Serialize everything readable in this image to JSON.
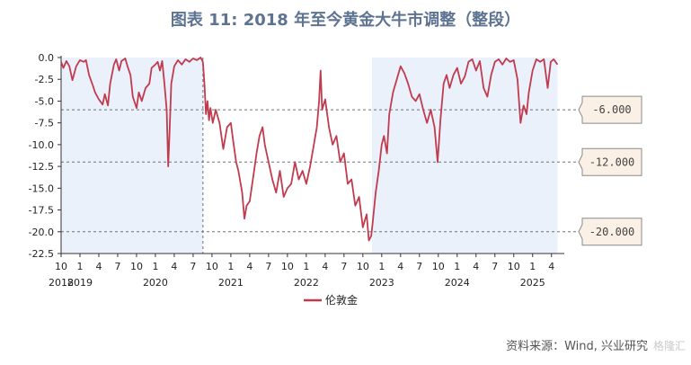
{
  "title": "图表 11: 2018 年至今黄金大牛市调整（整段）",
  "source": "资料来源：Wind, 兴业研究",
  "watermark": "格隆汇",
  "chart_data": {
    "type": "line",
    "ylim": [
      -22.5,
      0.0
    ],
    "yticks": [
      0.0,
      -2.5,
      -5.0,
      -7.5,
      -10.0,
      -12.5,
      -15.0,
      -17.5,
      -20.0,
      -22.5
    ],
    "ytick_labels": [
      "0.0",
      "-2.5",
      "-5.0",
      "-7.5",
      "-10.0",
      "-12.5",
      "-15.0",
      "-17.5",
      "-20.0",
      "-22.5"
    ],
    "xlim": [
      "2018-10",
      "2025-05"
    ],
    "xticks": [
      {
        "month": "10",
        "year": "2018",
        "t": 2018.75
      },
      {
        "month": "1",
        "year": "2019",
        "t": 2019.0
      },
      {
        "month": "4",
        "year": "",
        "t": 2019.25
      },
      {
        "month": "7",
        "year": "",
        "t": 2019.5
      },
      {
        "month": "10",
        "year": "",
        "t": 2019.75
      },
      {
        "month": "1",
        "year": "2020",
        "t": 2020.0
      },
      {
        "month": "4",
        "year": "",
        "t": 2020.25
      },
      {
        "month": "7",
        "year": "",
        "t": 2020.5
      },
      {
        "month": "10",
        "year": "",
        "t": 2020.75
      },
      {
        "month": "1",
        "year": "2021",
        "t": 2021.0
      },
      {
        "month": "4",
        "year": "",
        "t": 2021.25
      },
      {
        "month": "7",
        "year": "",
        "t": 2021.5
      },
      {
        "month": "10",
        "year": "",
        "t": 2021.75
      },
      {
        "month": "1",
        "year": "2022",
        "t": 2022.0
      },
      {
        "month": "4",
        "year": "",
        "t": 2022.25
      },
      {
        "month": "7",
        "year": "",
        "t": 2022.5
      },
      {
        "month": "10",
        "year": "",
        "t": 2022.75
      },
      {
        "month": "1",
        "year": "2023",
        "t": 2023.0
      },
      {
        "month": "4",
        "year": "",
        "t": 2023.25
      },
      {
        "month": "7",
        "year": "",
        "t": 2023.5
      },
      {
        "month": "10",
        "year": "",
        "t": 2023.75
      },
      {
        "month": "1",
        "year": "2024",
        "t": 2024.0
      },
      {
        "month": "4",
        "year": "",
        "t": 2024.25
      },
      {
        "month": "7",
        "year": "",
        "t": 2024.5
      },
      {
        "month": "10",
        "year": "",
        "t": 2024.75
      },
      {
        "month": "1",
        "year": "2025",
        "t": 2025.0
      },
      {
        "month": "4",
        "year": "",
        "t": 2025.25
      }
    ],
    "shaded_ranges": [
      {
        "from": 2018.75,
        "to": 2020.63
      },
      {
        "from": 2022.87,
        "to": 2025.33
      }
    ],
    "vline": 2020.63,
    "hlines": [
      {
        "value": -6.0,
        "label": "-6.000"
      },
      {
        "value": -12.0,
        "label": "-12.000"
      },
      {
        "value": -20.0,
        "label": "-20.000"
      }
    ],
    "series": [
      {
        "name": "伦敦金",
        "color": "#c13b4e",
        "points": [
          [
            2018.75,
            -0.5
          ],
          [
            2018.78,
            -1.2
          ],
          [
            2018.82,
            -0.4
          ],
          [
            2018.86,
            -1.0
          ],
          [
            2018.9,
            -2.6
          ],
          [
            2018.95,
            -1.0
          ],
          [
            2019.0,
            -0.3
          ],
          [
            2019.05,
            -0.5
          ],
          [
            2019.08,
            -0.3
          ],
          [
            2019.12,
            -2.0
          ],
          [
            2019.17,
            -3.2
          ],
          [
            2019.2,
            -4.0
          ],
          [
            2019.25,
            -4.8
          ],
          [
            2019.3,
            -5.4
          ],
          [
            2019.33,
            -4.2
          ],
          [
            2019.37,
            -5.5
          ],
          [
            2019.4,
            -3.0
          ],
          [
            2019.45,
            -0.8
          ],
          [
            2019.48,
            -0.2
          ],
          [
            2019.52,
            -1.5
          ],
          [
            2019.55,
            -0.4
          ],
          [
            2019.6,
            -0.1
          ],
          [
            2019.63,
            -1.0
          ],
          [
            2019.67,
            -2.0
          ],
          [
            2019.7,
            -4.5
          ],
          [
            2019.75,
            -5.8
          ],
          [
            2019.78,
            -4.0
          ],
          [
            2019.82,
            -5.0
          ],
          [
            2019.87,
            -3.5
          ],
          [
            2019.92,
            -3.0
          ],
          [
            2019.95,
            -1.2
          ],
          [
            2020.0,
            -0.8
          ],
          [
            2020.03,
            -0.5
          ],
          [
            2020.06,
            -1.5
          ],
          [
            2020.09,
            -0.4
          ],
          [
            2020.12,
            -3.0
          ],
          [
            2020.15,
            -6.0
          ],
          [
            2020.17,
            -12.5
          ],
          [
            2020.19,
            -8.0
          ],
          [
            2020.21,
            -3.0
          ],
          [
            2020.25,
            -1.0
          ],
          [
            2020.3,
            -0.3
          ],
          [
            2020.35,
            -0.8
          ],
          [
            2020.4,
            -0.2
          ],
          [
            2020.45,
            -0.5
          ],
          [
            2020.5,
            -0.1
          ],
          [
            2020.55,
            -0.3
          ],
          [
            2020.6,
            0.0
          ],
          [
            2020.63,
            -0.5
          ],
          [
            2020.65,
            -3.0
          ],
          [
            2020.67,
            -6.5
          ],
          [
            2020.69,
            -5.0
          ],
          [
            2020.71,
            -7.2
          ],
          [
            2020.73,
            -5.8
          ],
          [
            2020.76,
            -7.5
          ],
          [
            2020.8,
            -6.0
          ],
          [
            2020.85,
            -7.5
          ],
          [
            2020.9,
            -10.5
          ],
          [
            2020.95,
            -8.0
          ],
          [
            2021.0,
            -7.5
          ],
          [
            2021.03,
            -9.5
          ],
          [
            2021.07,
            -12.0
          ],
          [
            2021.1,
            -13.0
          ],
          [
            2021.15,
            -15.5
          ],
          [
            2021.18,
            -18.5
          ],
          [
            2021.21,
            -17.0
          ],
          [
            2021.25,
            -16.5
          ],
          [
            2021.3,
            -13.5
          ],
          [
            2021.34,
            -11.0
          ],
          [
            2021.38,
            -9.0
          ],
          [
            2021.42,
            -8.0
          ],
          [
            2021.45,
            -10.0
          ],
          [
            2021.5,
            -12.0
          ],
          [
            2021.55,
            -14.0
          ],
          [
            2021.6,
            -15.5
          ],
          [
            2021.65,
            -13.0
          ],
          [
            2021.7,
            -16.0
          ],
          [
            2021.75,
            -15.0
          ],
          [
            2021.8,
            -14.5
          ],
          [
            2021.85,
            -12.0
          ],
          [
            2021.9,
            -14.0
          ],
          [
            2021.95,
            -13.0
          ],
          [
            2022.0,
            -14.5
          ],
          [
            2022.05,
            -12.5
          ],
          [
            2022.1,
            -10.0
          ],
          [
            2022.14,
            -8.0
          ],
          [
            2022.17,
            -5.0
          ],
          [
            2022.19,
            -1.5
          ],
          [
            2022.21,
            -6.0
          ],
          [
            2022.25,
            -4.8
          ],
          [
            2022.3,
            -8.0
          ],
          [
            2022.35,
            -10.0
          ],
          [
            2022.4,
            -9.0
          ],
          [
            2022.45,
            -12.0
          ],
          [
            2022.5,
            -11.0
          ],
          [
            2022.55,
            -14.5
          ],
          [
            2022.6,
            -14.0
          ],
          [
            2022.65,
            -17.0
          ],
          [
            2022.7,
            -16.0
          ],
          [
            2022.75,
            -19.5
          ],
          [
            2022.8,
            -18.0
          ],
          [
            2022.83,
            -21.0
          ],
          [
            2022.86,
            -20.5
          ],
          [
            2022.88,
            -19.0
          ],
          [
            2022.92,
            -15.5
          ],
          [
            2022.96,
            -13.0
          ],
          [
            2023.0,
            -10.0
          ],
          [
            2023.03,
            -9.0
          ],
          [
            2023.07,
            -11.0
          ],
          [
            2023.1,
            -6.5
          ],
          [
            2023.15,
            -4.0
          ],
          [
            2023.2,
            -2.5
          ],
          [
            2023.25,
            -1.0
          ],
          [
            2023.3,
            -1.8
          ],
          [
            2023.35,
            -3.0
          ],
          [
            2023.4,
            -4.5
          ],
          [
            2023.45,
            -5.0
          ],
          [
            2023.5,
            -4.2
          ],
          [
            2023.55,
            -6.0
          ],
          [
            2023.6,
            -7.5
          ],
          [
            2023.65,
            -6.0
          ],
          [
            2023.7,
            -8.0
          ],
          [
            2023.74,
            -12.0
          ],
          [
            2023.78,
            -7.0
          ],
          [
            2023.82,
            -3.0
          ],
          [
            2023.86,
            -2.0
          ],
          [
            2023.9,
            -3.5
          ],
          [
            2023.95,
            -2.0
          ],
          [
            2024.0,
            -1.2
          ],
          [
            2024.05,
            -3.0
          ],
          [
            2024.1,
            -2.2
          ],
          [
            2024.15,
            -0.5
          ],
          [
            2024.2,
            -0.2
          ],
          [
            2024.25,
            -1.5
          ],
          [
            2024.3,
            -0.4
          ],
          [
            2024.35,
            -3.5
          ],
          [
            2024.4,
            -4.5
          ],
          [
            2024.45,
            -2.0
          ],
          [
            2024.5,
            -0.5
          ],
          [
            2024.55,
            -0.2
          ],
          [
            2024.6,
            -0.8
          ],
          [
            2024.65,
            -0.1
          ],
          [
            2024.7,
            -0.5
          ],
          [
            2024.75,
            -0.3
          ],
          [
            2024.8,
            -2.5
          ],
          [
            2024.84,
            -7.5
          ],
          [
            2024.88,
            -5.5
          ],
          [
            2024.92,
            -6.5
          ],
          [
            2024.95,
            -4.0
          ],
          [
            2025.0,
            -1.5
          ],
          [
            2025.05,
            -0.2
          ],
          [
            2025.1,
            -0.5
          ],
          [
            2025.15,
            -0.2
          ],
          [
            2025.2,
            -3.5
          ],
          [
            2025.24,
            -0.5
          ],
          [
            2025.28,
            -0.2
          ],
          [
            2025.33,
            -0.8
          ]
        ]
      }
    ],
    "legend": "bottom"
  }
}
